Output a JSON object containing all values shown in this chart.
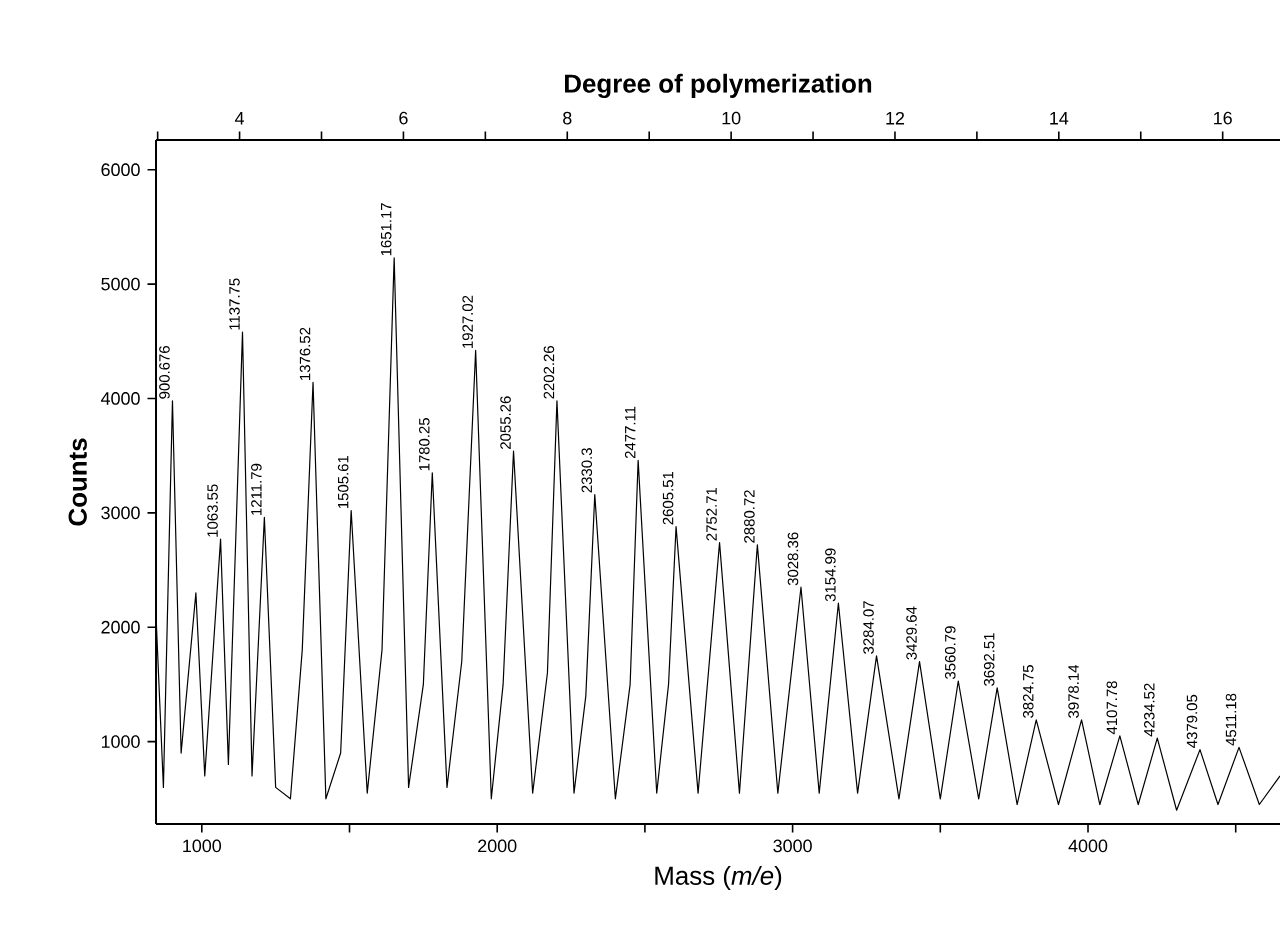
{
  "chart_data": {
    "type": "line",
    "xlabel": "Mass (*m/e*)",
    "ylabel": "Counts",
    "x2label": "Degree of polymerization",
    "xlim": [
      845,
      4650
    ],
    "ylim": [
      280,
      6260
    ],
    "x2lim": [
      2.98,
      16.7
    ],
    "xticks": [
      1000,
      {
        "value": 1500,
        "label": null
      },
      2000,
      {
        "value": 2500,
        "label": null
      },
      3000,
      {
        "value": 3500,
        "label": null
      },
      4000,
      {
        "value": 4500,
        "label": null
      }
    ],
    "yticks": [
      1000,
      2000,
      3000,
      4000,
      5000,
      6000
    ],
    "x2ticks": [
      {
        "value": 3,
        "label": null
      },
      4,
      {
        "value": 5,
        "label": null
      },
      6,
      {
        "value": 7,
        "label": null
      },
      8,
      {
        "value": 9,
        "label": null
      },
      10,
      {
        "value": 11,
        "label": null
      },
      12,
      {
        "value": 13,
        "label": null
      },
      14,
      {
        "value": 15,
        "label": null
      },
      16
    ],
    "series": [
      {
        "color": "#000000",
        "line_style": "solid",
        "x": [
          845,
          870,
          900.676,
          930,
          980,
          1010,
          1063.55,
          1090,
          1137.75,
          1170,
          1211.79,
          1250,
          1300,
          1340,
          1376.52,
          1420,
          1470,
          1505.61,
          1560,
          1610,
          1651.17,
          1700,
          1750,
          1780.25,
          1830,
          1880,
          1927.02,
          1980,
          2020,
          2055.26,
          2120,
          2170,
          2202.26,
          2260,
          2300,
          2330.3,
          2400,
          2450,
          2477.11,
          2540,
          2580,
          2605.51,
          2680,
          2752.71,
          2820,
          2880.72,
          2950,
          3028.36,
          3090,
          3154.99,
          3220,
          3284.07,
          3360,
          3429.64,
          3500,
          3560.79,
          3630,
          3692.51,
          3760,
          3824.75,
          3900,
          3978.14,
          4040,
          4107.78,
          4170,
          4234.52,
          4300,
          4379.05,
          4440,
          4511.18,
          4580,
          4650
        ],
        "values": [
          2100,
          600,
          3980,
          900,
          2300,
          700,
          2770,
          800,
          4580,
          700,
          2960,
          600,
          500,
          1800,
          4140,
          500,
          900,
          3020,
          550,
          1800,
          5230,
          600,
          1500,
          3350,
          600,
          1700,
          4420,
          500,
          1500,
          3540,
          550,
          1600,
          3980,
          550,
          1400,
          3160,
          500,
          1500,
          3460,
          550,
          1500,
          2880,
          550,
          2740,
          550,
          2720,
          550,
          2350,
          550,
          2210,
          550,
          1750,
          500,
          1700,
          500,
          1530,
          500,
          1470,
          450,
          1190,
          450,
          1190,
          450,
          1050,
          450,
          1030,
          400,
          930,
          450,
          950,
          450,
          700
        ]
      }
    ],
    "annotations": [
      {
        "text": "900.676",
        "x": 900.676,
        "y": 3980
      },
      {
        "text": "1063.55",
        "x": 1063.55,
        "y": 2770
      },
      {
        "text": "1137.75",
        "x": 1137.75,
        "y": 4580
      },
      {
        "text": "1211.79",
        "x": 1211.79,
        "y": 2960
      },
      {
        "text": "1376.52",
        "x": 1376.52,
        "y": 4140
      },
      {
        "text": "1505.61",
        "x": 1505.61,
        "y": 3020
      },
      {
        "text": "1651.17",
        "x": 1651.17,
        "y": 5230
      },
      {
        "text": "1780.25",
        "x": 1780.25,
        "y": 3350
      },
      {
        "text": "1927.02",
        "x": 1927.02,
        "y": 4420
      },
      {
        "text": "2055.26",
        "x": 2055.26,
        "y": 3540
      },
      {
        "text": "2202.26",
        "x": 2202.26,
        "y": 3980
      },
      {
        "text": "2330.3",
        "x": 2330.3,
        "y": 3160
      },
      {
        "text": "2477.11",
        "x": 2477.11,
        "y": 3460
      },
      {
        "text": "2605.51",
        "x": 2605.51,
        "y": 2880
      },
      {
        "text": "2752.71",
        "x": 2752.71,
        "y": 2740
      },
      {
        "text": "2880.72",
        "x": 2880.72,
        "y": 2720
      },
      {
        "text": "3028.36",
        "x": 3028.36,
        "y": 2350
      },
      {
        "text": "3154.99",
        "x": 3154.99,
        "y": 2210
      },
      {
        "text": "3284.07",
        "x": 3284.07,
        "y": 1750
      },
      {
        "text": "3429.64",
        "x": 3429.64,
        "y": 1700
      },
      {
        "text": "3560.79",
        "x": 3560.79,
        "y": 1530
      },
      {
        "text": "3692.51",
        "x": 3692.51,
        "y": 1470
      },
      {
        "text": "3824.75",
        "x": 3824.75,
        "y": 1190
      },
      {
        "text": "3978.14",
        "x": 3978.14,
        "y": 1190
      },
      {
        "text": "4107.78",
        "x": 4107.78,
        "y": 1050
      },
      {
        "text": "4234.52",
        "x": 4234.52,
        "y": 1030
      },
      {
        "text": "4379.05",
        "x": 4379.05,
        "y": 930
      },
      {
        "text": "4511.18",
        "x": 4511.18,
        "y": 950
      }
    ]
  }
}
